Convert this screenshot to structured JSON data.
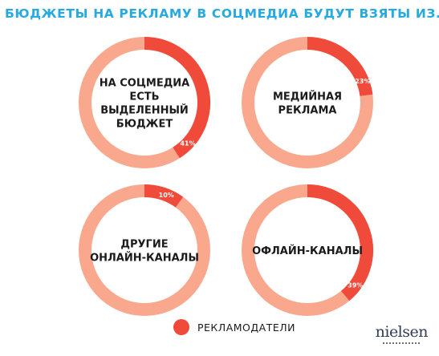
{
  "title": "БЮДЖЕТЫ НА РЕКЛАМУ В СОЦМЕДИА БУДУТ ВЗЯТЫ ИЗ...",
  "colors": {
    "highlight": "#f04a3a",
    "track": "#f9a88d",
    "title": "#27a9e1"
  },
  "chart_data": {
    "type": "pie",
    "charts": [
      {
        "label_lines": [
          "НА СОЦМЕДИА",
          "ЕСТЬ",
          "ВЫДЕЛЕННЫЙ",
          "БЮДЖЕТ"
        ],
        "value": 41,
        "value_label": "41%"
      },
      {
        "label_lines": [
          "МЕДИЙНАЯ",
          "РЕКЛАМА"
        ],
        "value": 23,
        "value_label": "23%"
      },
      {
        "label_lines": [
          "ДРУГИЕ",
          "ОНЛАЙН-КАНАЛЫ"
        ],
        "value": 10,
        "value_label": "10%"
      },
      {
        "label_lines": [
          "ОФЛАЙН-КАНАЛЫ"
        ],
        "value": 39,
        "value_label": "39%"
      }
    ],
    "legend": {
      "label": "РЕКЛАМОДАТЕЛИ",
      "position": "bottom-center"
    }
  },
  "brand": "nielsen"
}
